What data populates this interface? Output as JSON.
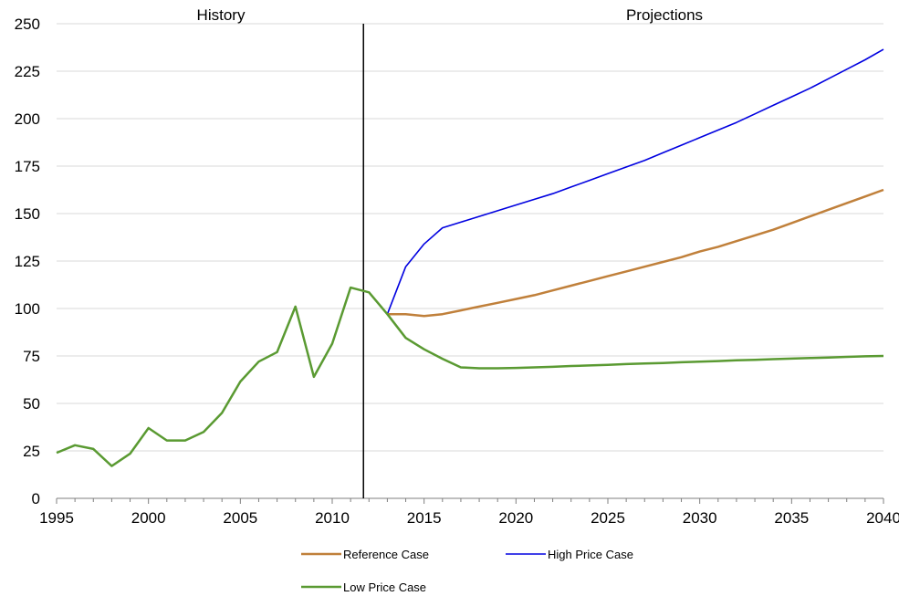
{
  "chart_data": {
    "type": "line",
    "title": "",
    "xlabel": "",
    "ylabel": "",
    "xlim": [
      1995,
      2040
    ],
    "ylim": [
      0,
      250
    ],
    "y_ticks": [
      0,
      25,
      50,
      75,
      100,
      125,
      150,
      175,
      200,
      225,
      250
    ],
    "x_ticks": [
      1995,
      2000,
      2005,
      2010,
      2015,
      2020,
      2025,
      2030,
      2035,
      2040
    ],
    "grid": "horizontal",
    "divider_year": 2011.7,
    "period_labels": [
      "History",
      "Projections"
    ],
    "legend_position": "bottom",
    "series": [
      {
        "name": "Reference Case",
        "color": "#c0803b",
        "x": [
          2013,
          2014,
          2015,
          2016,
          2017,
          2018,
          2019,
          2020,
          2021,
          2022,
          2023,
          2024,
          2025,
          2026,
          2027,
          2028,
          2029,
          2030,
          2031,
          2032,
          2033,
          2034,
          2035,
          2036,
          2037,
          2038,
          2039,
          2040
        ],
        "y": [
          97,
          97,
          96,
          97,
          99,
          101,
          103,
          105,
          107,
          109.5,
          112,
          114.5,
          117,
          119.5,
          122,
          124.5,
          127,
          130,
          132.5,
          135.5,
          138.5,
          141.5,
          145,
          148.5,
          152,
          155.5,
          159,
          162.5
        ]
      },
      {
        "name": "High Price Case",
        "color": "#0000e0",
        "x": [
          2013,
          2014,
          2015,
          2016,
          2017,
          2018,
          2019,
          2020,
          2021,
          2022,
          2023,
          2024,
          2025,
          2026,
          2027,
          2028,
          2029,
          2030,
          2031,
          2032,
          2033,
          2034,
          2035,
          2036,
          2037,
          2038,
          2039,
          2040
        ],
        "y": [
          97,
          122,
          134,
          142.5,
          145.5,
          148.5,
          151.5,
          154.5,
          157.5,
          160.5,
          164,
          167.5,
          171,
          174.5,
          178,
          182,
          186,
          190,
          194,
          198,
          202.5,
          207,
          211.5,
          216,
          221,
          226,
          231,
          236.5
        ]
      },
      {
        "name": "Low Price Case",
        "color": "#5a9a32",
        "x": [
          1995,
          1996,
          1997,
          1998,
          1999,
          2000,
          2001,
          2002,
          2003,
          2004,
          2005,
          2006,
          2007,
          2008,
          2009,
          2010,
          2011,
          2012,
          2013,
          2014,
          2015,
          2016,
          2017,
          2018,
          2019,
          2020,
          2021,
          2022,
          2023,
          2024,
          2025,
          2026,
          2027,
          2028,
          2029,
          2030,
          2031,
          2032,
          2033,
          2034,
          2035,
          2036,
          2037,
          2038,
          2039,
          2040
        ],
        "y": [
          24,
          28,
          26,
          17,
          23.5,
          37,
          30.5,
          30.5,
          35,
          45,
          61.5,
          72,
          77,
          101,
          64,
          81.5,
          111,
          108.5,
          97,
          84.5,
          78.5,
          73.5,
          69,
          68.5,
          68.5,
          68.7,
          69,
          69.3,
          69.7,
          70,
          70.3,
          70.7,
          71,
          71.3,
          71.7,
          72,
          72.3,
          72.7,
          73,
          73.3,
          73.6,
          73.9,
          74.2,
          74.5,
          74.8,
          75
        ]
      }
    ]
  }
}
